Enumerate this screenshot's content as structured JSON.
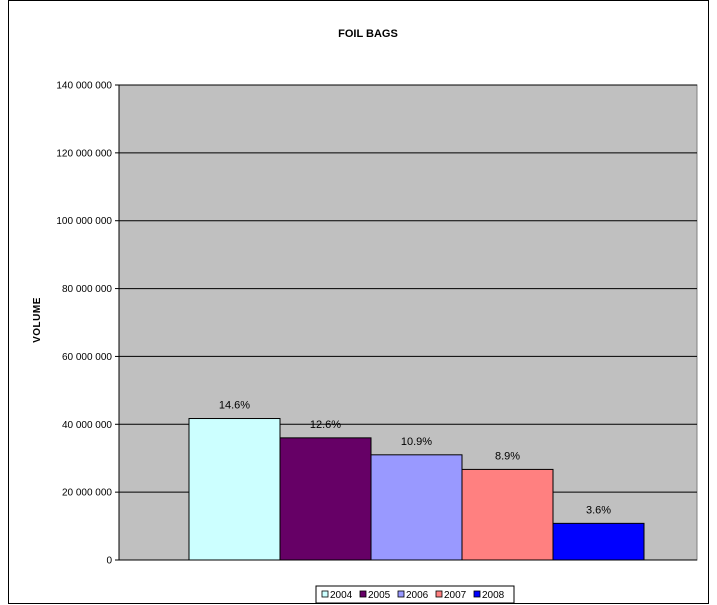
{
  "chart_data": {
    "type": "bar",
    "title": "FOIL BAGS",
    "ylabel": "VOLUME",
    "xlabel": "",
    "ylim": [
      0,
      140000000
    ],
    "yticks": [
      0,
      20000000,
      40000000,
      60000000,
      80000000,
      100000000,
      120000000,
      140000000
    ],
    "ytick_labels": [
      "0",
      "20 000 000",
      "40 000 000",
      "60 000 000",
      "80 000 000",
      "100 000 000",
      "120 000 000",
      "140 000 000"
    ],
    "grid": true,
    "legend_position": "bottom",
    "series": [
      {
        "name": "2004",
        "value": 41700000,
        "label": "14.6%",
        "color": "#ccffff"
      },
      {
        "name": "2005",
        "value": 36000000,
        "label": "12.6%",
        "color": "#660066"
      },
      {
        "name": "2006",
        "value": 31000000,
        "label": "10.9%",
        "color": "#9999ff"
      },
      {
        "name": "2007",
        "value": 26700000,
        "label": "8.9%",
        "color": "#ff8080"
      },
      {
        "name": "2008",
        "value": 10800000,
        "label": "3.6%",
        "color": "#0000ff"
      }
    ],
    "plot_background": "#c0c0c0"
  }
}
